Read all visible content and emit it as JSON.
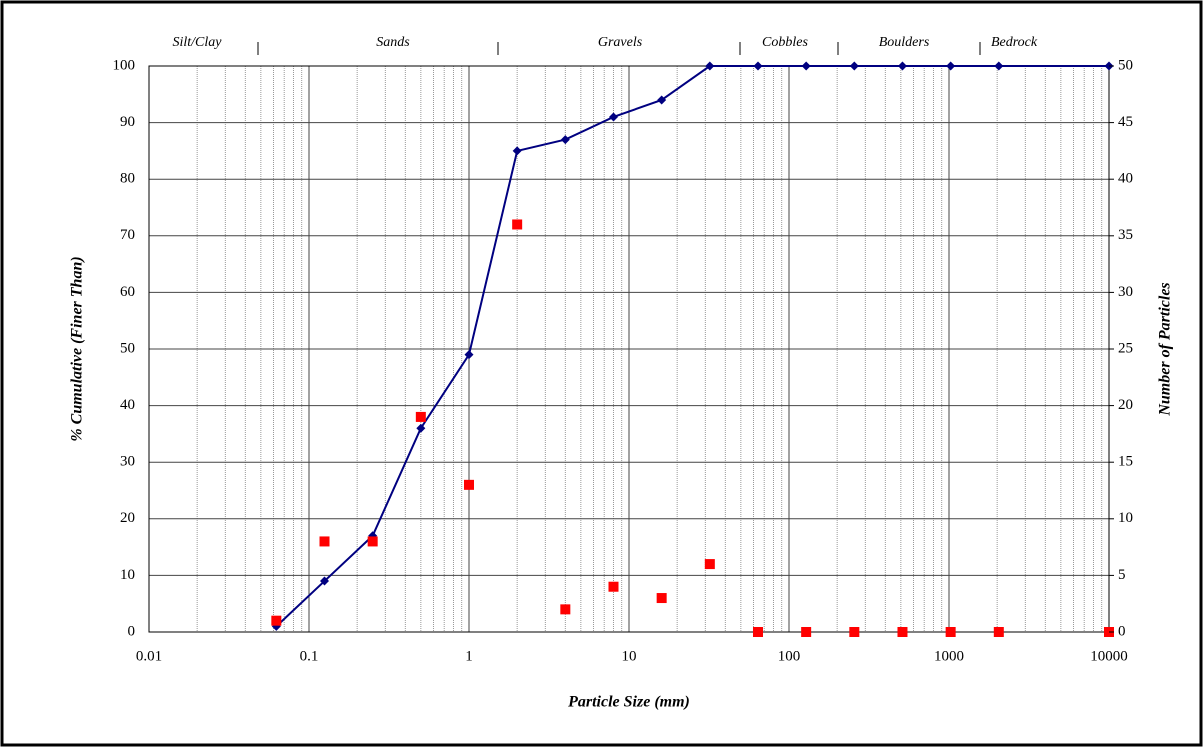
{
  "chart_data": {
    "type": "line",
    "x_label": "Particle Size (mm)",
    "y_label": "% Cumulative (Finer Than)",
    "y2_label": "Number of Particles",
    "zones": [
      "Silt/Clay",
      "Sands",
      "Gravels",
      "Cobbles",
      "Boulders",
      "Bedrock"
    ],
    "x": [
      0.0625,
      0.125,
      0.25,
      0.5,
      1,
      2,
      4,
      8,
      16,
      32,
      64,
      128,
      256,
      512,
      1024,
      2048,
      10000
    ],
    "series": [
      {
        "style": "line-marker",
        "color": "#000080",
        "values": [
          1,
          9,
          17,
          36,
          49,
          85,
          87,
          91,
          94,
          100,
          100,
          100,
          100,
          100,
          100,
          100,
          100
        ]
      },
      {
        "style": "marker",
        "axis": "y2",
        "color": "#ff0000",
        "values": [
          1,
          8,
          8,
          19,
          13,
          36,
          2,
          4,
          3,
          6,
          0,
          0,
          0,
          0,
          0,
          0,
          0
        ]
      }
    ],
    "xlog": true,
    "xlim": [
      0.01,
      10000
    ],
    "xticks": [
      0.01,
      0.1,
      1,
      10,
      100,
      1000,
      10000
    ],
    "ylim": [
      0,
      100
    ],
    "yticks": [
      0,
      10,
      20,
      30,
      40,
      50,
      60,
      70,
      80,
      90,
      100
    ],
    "y2lim": [
      0,
      50
    ],
    "y2ticks": [
      0,
      5,
      10,
      15,
      20,
      25,
      30,
      35,
      40,
      45,
      50
    ],
    "grid": true
  }
}
